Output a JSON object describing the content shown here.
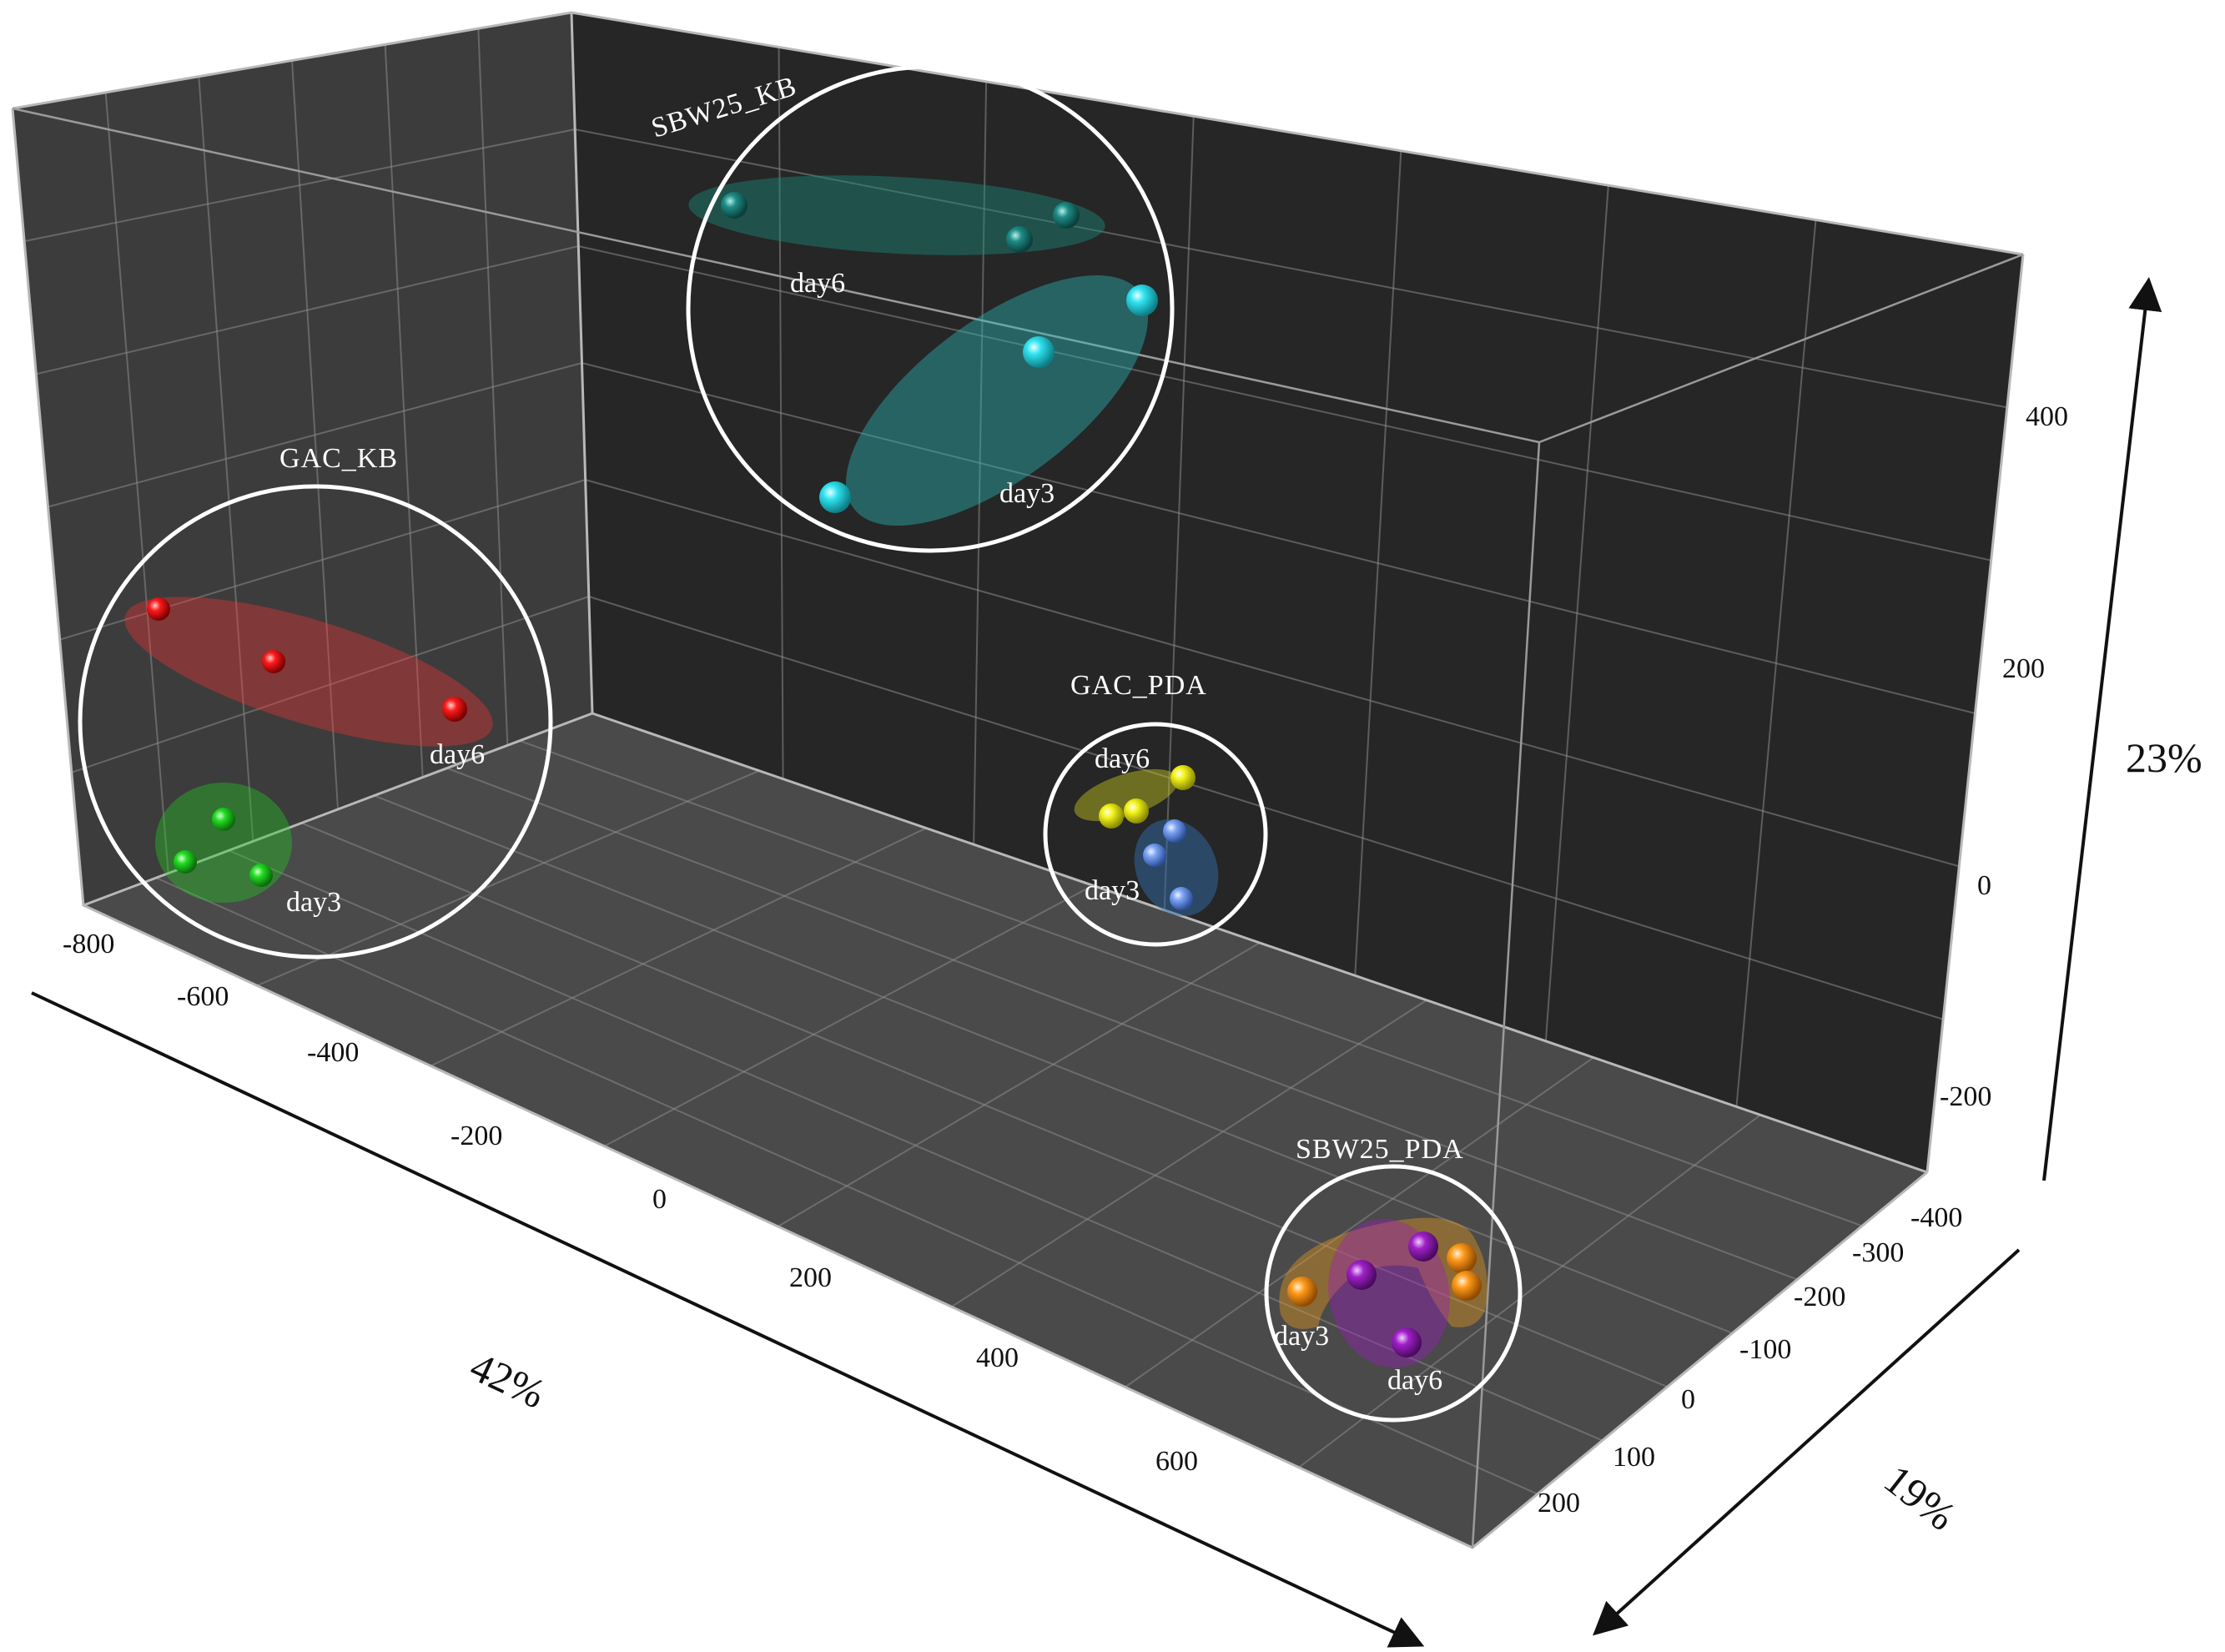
{
  "chart_data": {
    "type": "scatter",
    "dimensions": 3,
    "axes": {
      "x": {
        "label": "42%",
        "ticks": [
          "-800",
          "-600",
          "-400",
          "-200",
          "0",
          "200",
          "400",
          "600"
        ]
      },
      "y": {
        "label": "19%",
        "ticks": [
          "-400",
          "-300",
          "-200",
          "-100",
          "0",
          "100",
          "200"
        ]
      },
      "z": {
        "label": "23%",
        "ticks": [
          "400",
          "200",
          "0",
          "-200"
        ]
      }
    },
    "groups": [
      {
        "name": "GAC_KB",
        "subgroups": [
          {
            "label": "day6",
            "color": "#ff1a1a",
            "points": 3
          },
          {
            "label": "day3",
            "color": "#22dd22",
            "points": 3
          }
        ]
      },
      {
        "name": "SBW25_KB",
        "subgroups": [
          {
            "label": "day6",
            "color": "#1f8c86",
            "points": 3
          },
          {
            "label": "day3",
            "color": "#2fe2f0",
            "points": 3
          }
        ]
      },
      {
        "name": "GAC_PDA",
        "subgroups": [
          {
            "label": "day6",
            "color": "#f2f21a",
            "points": 3
          },
          {
            "label": "day3",
            "color": "#7da4f5",
            "points": 3
          }
        ]
      },
      {
        "name": "SBW25_PDA",
        "subgroups": [
          {
            "label": "day3",
            "color": "#ff9a1a",
            "points": 3
          },
          {
            "label": "day6",
            "color": "#a020c8",
            "points": 3
          }
        ]
      }
    ],
    "grid": true,
    "background": "#2a2a2a"
  }
}
